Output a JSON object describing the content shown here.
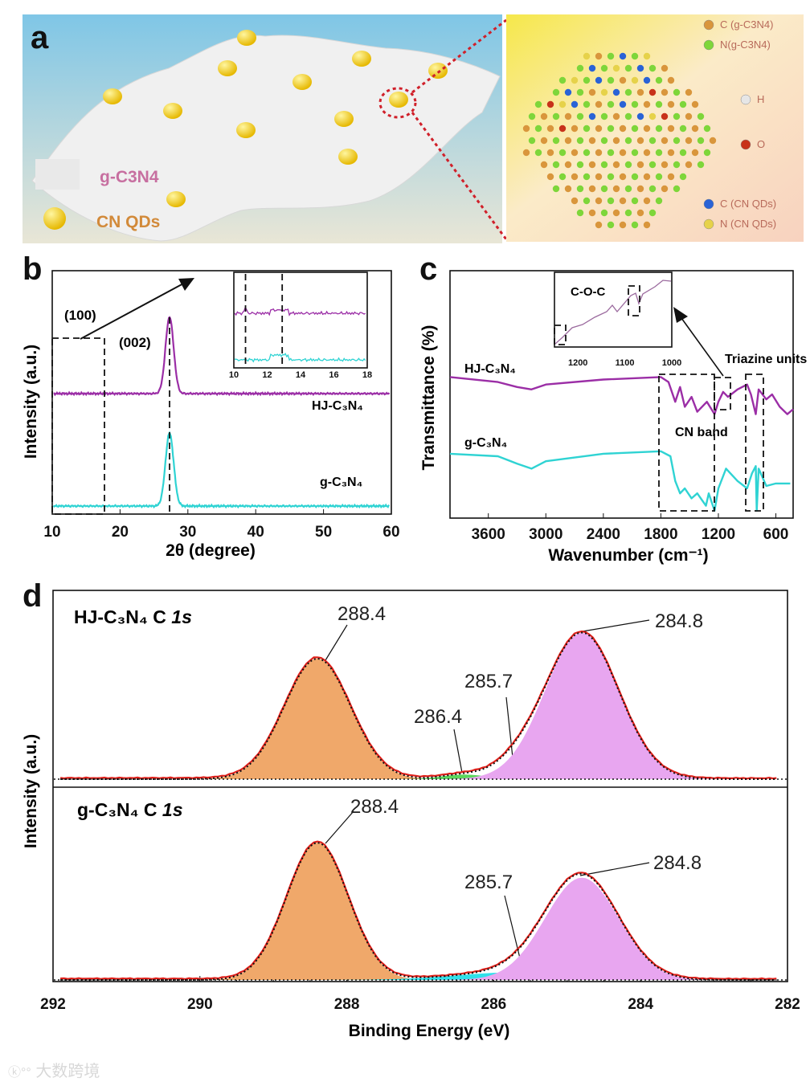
{
  "panel_letters": {
    "a": "a",
    "b": "b",
    "c": "c",
    "d": "d"
  },
  "panel_a": {
    "legend_sheet": "g-C3N4",
    "legend_dot": "CN QDs",
    "atom_legend": [
      "C (g-C3N4)",
      "N(g-C3N4)",
      "H",
      "O",
      "C (CN QDs)",
      "N (CN QDs)"
    ],
    "colors": {
      "sheet": "#f2f2f2",
      "qd": "#f3cf0a",
      "c_gcn": "#d9963c",
      "n_gcn": "#7ed63a",
      "h": "#e6e6e6",
      "o": "#c8321a",
      "c_qd": "#2a63d6",
      "n_qd": "#e6d24a"
    }
  },
  "watermark": "大数跨境",
  "chart_data": [
    {
      "id": "b",
      "type": "line",
      "title": "",
      "xlabel": "2θ (degree)",
      "ylabel": "Intensity (a.u.)",
      "xlim": [
        10,
        60
      ],
      "ylim": [
        0,
        10
      ],
      "xticks": [
        "10",
        "20",
        "30",
        "40",
        "50",
        "60"
      ],
      "annotations": [
        "(100)",
        "(002)"
      ],
      "series": [
        {
          "name": "HJ-C₃N₄",
          "color": "#9b2ea6",
          "baseline": 4.95,
          "peak_center": 27.3,
          "peak_height": 3.15,
          "peak_width": 0.6
        },
        {
          "name": "g-C₃N₄",
          "color": "#2fd3d3",
          "baseline": 0.33,
          "peak_center": 27.3,
          "peak_height": 3.0,
          "peak_width": 0.6
        }
      ],
      "inset": {
        "xlim": [
          10,
          18
        ],
        "xticks": [
          "10",
          "12",
          "14",
          "16",
          "18"
        ],
        "dashed_x": [
          10.7,
          12.9
        ]
      }
    },
    {
      "id": "c",
      "type": "line",
      "xlabel": "Wavenumber (cm⁻¹)",
      "ylabel": "Transmittance (%)",
      "xlim": [
        4000,
        400
      ],
      "ylim": [
        0,
        1
      ],
      "xticks": [
        "3600",
        "3000",
        "2400",
        "1800",
        "1200",
        "600"
      ],
      "annotations": [
        "CN band",
        "Triazine units"
      ],
      "series": [
        {
          "name": "HJ-C₃N₄",
          "color": "#9b2ea6",
          "points": [
            [
              4000,
              0.57
            ],
            [
              3500,
              0.55
            ],
            [
              3300,
              0.53
            ],
            [
              3150,
              0.52
            ],
            [
              3000,
              0.54
            ],
            [
              2400,
              0.56
            ],
            [
              1800,
              0.57
            ],
            [
              1720,
              0.55
            ],
            [
              1650,
              0.47
            ],
            [
              1600,
              0.53
            ],
            [
              1550,
              0.45
            ],
            [
              1480,
              0.49
            ],
            [
              1420,
              0.43
            ],
            [
              1320,
              0.47
            ],
            [
              1240,
              0.42
            ],
            [
              1200,
              0.47
            ],
            [
              1150,
              0.51
            ],
            [
              1100,
              0.49
            ],
            [
              1000,
              0.52
            ],
            [
              900,
              0.54
            ],
            [
              860,
              0.5
            ],
            [
              810,
              0.42
            ],
            [
              780,
              0.52
            ],
            [
              700,
              0.48
            ],
            [
              640,
              0.5
            ],
            [
              560,
              0.45
            ],
            [
              480,
              0.42
            ],
            [
              420,
              0.44
            ]
          ]
        },
        {
          "name": "g-C₃N₄",
          "color": "#2fd3d3",
          "points": [
            [
              4000,
              0.26
            ],
            [
              3500,
              0.25
            ],
            [
              3300,
              0.22
            ],
            [
              3150,
              0.2
            ],
            [
              3000,
              0.23
            ],
            [
              2400,
              0.26
            ],
            [
              1800,
              0.27
            ],
            [
              1700,
              0.25
            ],
            [
              1650,
              0.15
            ],
            [
              1600,
              0.1
            ],
            [
              1550,
              0.12
            ],
            [
              1480,
              0.08
            ],
            [
              1420,
              0.1
            ],
            [
              1330,
              0.05
            ],
            [
              1300,
              0.1
            ],
            [
              1240,
              0.03
            ],
            [
              1200,
              0.12
            ],
            [
              1120,
              0.2
            ],
            [
              1000,
              0.15
            ],
            [
              900,
              0.12
            ],
            [
              850,
              0.18
            ],
            [
              810,
              0.21
            ],
            [
              800,
              0.03
            ],
            [
              780,
              0.2
            ],
            [
              700,
              0.13
            ],
            [
              600,
              0.14
            ],
            [
              450,
              0.14
            ]
          ]
        }
      ],
      "inset": {
        "xlim": [
          1250,
          1000
        ],
        "xticks": [
          "1200",
          "1100",
          "1000"
        ],
        "label": "C-O-C"
      }
    },
    {
      "id": "d",
      "type": "area",
      "xlabel": "Binding Energy (eV)",
      "ylabel": "Intensity (a.u.)",
      "xlim": [
        292,
        282
      ],
      "xticks": [
        "292",
        "290",
        "288",
        "286",
        "284",
        "282"
      ],
      "panels": [
        {
          "title": "HJ-C₃N₄  C",
          "orbital": "1s",
          "components": [
            {
              "center": 288.4,
              "amplitude": 0.79,
              "sigma": 0.45,
              "color": "#f0a86a",
              "label": "288.4"
            },
            {
              "center": 286.4,
              "amplitude": 0.03,
              "sigma": 0.3,
              "color": "#5bd65b",
              "label": "286.4"
            },
            {
              "center": 285.7,
              "amplitude": 0.06,
              "sigma": 0.3,
              "color": "#2fe0ea",
              "label": "285.7"
            },
            {
              "center": 284.8,
              "amplitude": 0.96,
              "sigma": 0.5,
              "color": "#e8a6f0",
              "label": "284.8"
            }
          ]
        },
        {
          "title": "g-C₃N₄ C",
          "orbital": "1s",
          "components": [
            {
              "center": 288.4,
              "amplitude": 0.9,
              "sigma": 0.42,
              "color": "#f0a86a",
              "label": "288.4"
            },
            {
              "center": 285.7,
              "amplitude": 0.05,
              "sigma": 0.8,
              "color": "#2fe0ea",
              "label": "285.7"
            },
            {
              "center": 284.8,
              "amplitude": 0.67,
              "sigma": 0.5,
              "color": "#e8a6f0",
              "label": "284.8"
            }
          ]
        }
      ]
    }
  ]
}
